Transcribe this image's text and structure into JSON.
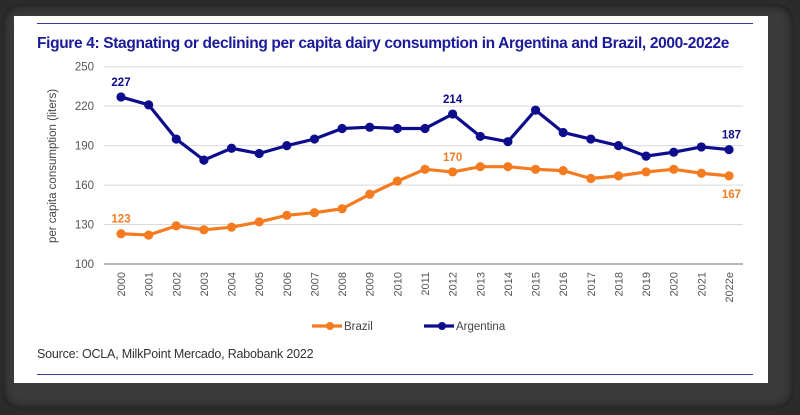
{
  "figure": {
    "title": "Figure 4: Stagnating or declining per capita dairy consumption in Argentina and Brazil, 2000-2022e",
    "source": "Source: OCLA, MilkPoint Mercado, Rabobank 2022"
  },
  "colors": {
    "title": "#1b1b9a",
    "rule": "#3a3a9c",
    "argentina": "#0c0c8c",
    "brazil": "#f47b20",
    "grid": "#d9d9d9",
    "axis": "#8c8c8c"
  },
  "chart_data": {
    "type": "line",
    "title": "Figure 4: Stagnating or declining per capita dairy consumption in Argentina and Brazil, 2000-2022e",
    "xlabel": "",
    "ylabel": "per capita consumption (liters)",
    "ylim": [
      100,
      250
    ],
    "yticks": [
      100,
      130,
      160,
      190,
      220,
      250
    ],
    "grid": true,
    "legend_position": "bottom-center",
    "categories": [
      "2000",
      "2001",
      "2002",
      "2003",
      "2004",
      "2005",
      "2006",
      "2007",
      "2008",
      "2009",
      "2010",
      "2011",
      "2012",
      "2013",
      "2014",
      "2015",
      "2016",
      "2017",
      "2018",
      "2019",
      "2020",
      "2021",
      "2022e"
    ],
    "series": [
      {
        "name": "Brazil",
        "color": "#f47b20",
        "values": [
          123,
          122,
          129,
          126,
          128,
          132,
          137,
          139,
          142,
          153,
          163,
          172,
          170,
          174,
          174,
          172,
          171,
          165,
          167,
          170,
          172,
          169,
          167
        ],
        "labels": [
          {
            "index": 0,
            "text": "123",
            "position": "above"
          },
          {
            "index": 12,
            "text": "170",
            "position": "above"
          },
          {
            "index": 22,
            "text": "167",
            "position": "below"
          }
        ]
      },
      {
        "name": "Argentina",
        "color": "#0c0c8c",
        "values": [
          227,
          221,
          195,
          179,
          188,
          184,
          190,
          195,
          203,
          204,
          203,
          203,
          214,
          197,
          193,
          217,
          200,
          195,
          190,
          182,
          185,
          189,
          187
        ],
        "labels": [
          {
            "index": 0,
            "text": "227",
            "position": "above"
          },
          {
            "index": 12,
            "text": "214",
            "position": "above"
          },
          {
            "index": 22,
            "text": "187",
            "position": "above"
          }
        ]
      }
    ],
    "legend": [
      "Brazil",
      "Argentina"
    ]
  }
}
